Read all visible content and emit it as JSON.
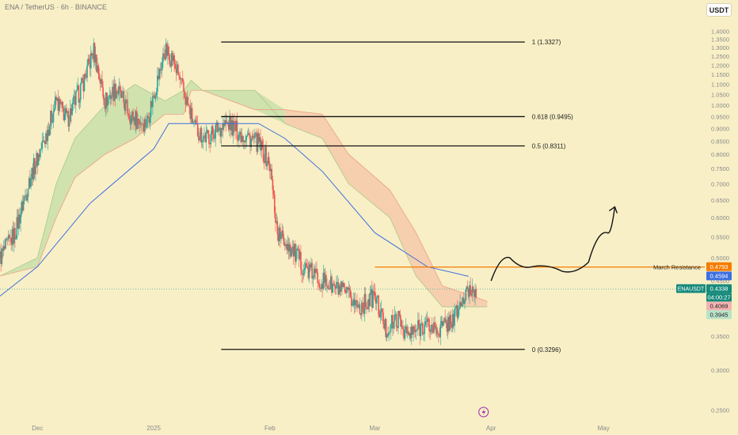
{
  "header": {
    "title": "ENA / TetherUS · 6h · BINANCE",
    "currency_button": "USDT"
  },
  "colors": {
    "background": "#f8efc6",
    "axis_text": "#8a8a8a",
    "bull_candle": "#26a69a",
    "bear_candle": "#ef5350",
    "moving_average": "#3d6fe0",
    "resistance": "#f57c00",
    "cloud_bull": "#c9dfa9",
    "cloud_bear": "#f6c9a9",
    "fib_line": "#111111"
  },
  "chart_data": {
    "type": "candlestick",
    "y_axis": {
      "scale": "log",
      "range": [
        0.24,
        1.48
      ],
      "ticks": [
        "1.4000",
        "1.3500",
        "1.3000",
        "1.2500",
        "1.2000",
        "1.1500",
        "1.1000",
        "1.0500",
        "1.0000",
        "0.9500",
        "0.9000",
        "0.8500",
        "0.8000",
        "0.7500",
        "0.7000",
        "0.6500",
        "0.6000",
        "0.5500",
        "0.5000",
        "0.4500",
        "0.4000",
        "0.3500",
        "0.3000",
        "0.2500"
      ],
      "side": "right"
    },
    "x_axis": {
      "range": [
        "2024-11-21",
        "2025-05-28"
      ],
      "ticks": [
        {
          "label": "Dec",
          "date": "2024-12-01"
        },
        {
          "label": "2025",
          "date": "2025-01-01"
        },
        {
          "label": "Feb",
          "date": "2025-02-01"
        },
        {
          "label": "Mar",
          "date": "2025-03-01"
        },
        {
          "label": "Apr",
          "date": "2025-04-01"
        },
        {
          "label": "May",
          "date": "2025-05-01"
        }
      ]
    },
    "price_path": [
      {
        "date": "2024-11-21",
        "price": 0.5
      },
      {
        "date": "2024-11-25",
        "price": 0.56
      },
      {
        "date": "2024-11-29",
        "price": 0.72
      },
      {
        "date": "2024-12-03",
        "price": 0.86
      },
      {
        "date": "2024-12-06",
        "price": 1.02
      },
      {
        "date": "2024-12-09",
        "price": 0.94
      },
      {
        "date": "2024-12-13",
        "price": 1.1
      },
      {
        "date": "2024-12-16",
        "price": 1.28
      },
      {
        "date": "2024-12-19",
        "price": 1.02
      },
      {
        "date": "2024-12-22",
        "price": 1.08
      },
      {
        "date": "2024-12-26",
        "price": 0.95
      },
      {
        "date": "2024-12-30",
        "price": 0.92
      },
      {
        "date": "2025-01-02",
        "price": 1.12
      },
      {
        "date": "2025-01-04",
        "price": 1.28
      },
      {
        "date": "2025-01-06",
        "price": 1.24
      },
      {
        "date": "2025-01-09",
        "price": 1.06
      },
      {
        "date": "2025-01-12",
        "price": 0.9
      },
      {
        "date": "2025-01-15",
        "price": 0.86
      },
      {
        "date": "2025-01-18",
        "price": 0.9
      },
      {
        "date": "2025-01-21",
        "price": 0.92
      },
      {
        "date": "2025-01-24",
        "price": 0.88
      },
      {
        "date": "2025-01-27",
        "price": 0.86
      },
      {
        "date": "2025-01-29",
        "price": 0.84
      },
      {
        "date": "2025-02-01",
        "price": 0.76
      },
      {
        "date": "2025-02-03",
        "price": 0.56
      },
      {
        "date": "2025-02-06",
        "price": 0.53
      },
      {
        "date": "2025-02-10",
        "price": 0.48
      },
      {
        "date": "2025-02-15",
        "price": 0.45
      },
      {
        "date": "2025-02-20",
        "price": 0.43
      },
      {
        "date": "2025-02-25",
        "price": 0.4
      },
      {
        "date": "2025-03-01",
        "price": 0.42
      },
      {
        "date": "2025-03-04",
        "price": 0.36
      },
      {
        "date": "2025-03-07",
        "price": 0.38
      },
      {
        "date": "2025-03-10",
        "price": 0.35
      },
      {
        "date": "2025-03-14",
        "price": 0.37
      },
      {
        "date": "2025-03-18",
        "price": 0.36
      },
      {
        "date": "2025-03-22",
        "price": 0.38
      },
      {
        "date": "2025-03-26",
        "price": 0.43
      },
      {
        "date": "2025-03-28",
        "price": 0.4338
      }
    ],
    "moving_average": [
      {
        "date": "2024-11-21",
        "price": 0.42
      },
      {
        "date": "2024-12-01",
        "price": 0.48
      },
      {
        "date": "2024-12-15",
        "price": 0.64
      },
      {
        "date": "2025-01-01",
        "price": 0.82
      },
      {
        "date": "2025-01-05",
        "price": 0.92
      },
      {
        "date": "2025-01-15",
        "price": 0.92
      },
      {
        "date": "2025-01-29",
        "price": 0.92
      },
      {
        "date": "2025-02-05",
        "price": 0.86
      },
      {
        "date": "2025-02-15",
        "price": 0.74
      },
      {
        "date": "2025-03-01",
        "price": 0.56
      },
      {
        "date": "2025-03-15",
        "price": 0.48
      },
      {
        "date": "2025-03-26",
        "price": 0.4594
      }
    ],
    "cloud": [
      {
        "date": "2024-11-21",
        "a": 0.46,
        "b": 0.46
      },
      {
        "date": "2024-12-01",
        "a": 0.5,
        "b": 0.48
      },
      {
        "date": "2024-12-06",
        "a": 0.7,
        "b": 0.6
      },
      {
        "date": "2024-12-11",
        "a": 0.86,
        "b": 0.72
      },
      {
        "date": "2024-12-19",
        "a": 1.0,
        "b": 0.8
      },
      {
        "date": "2024-12-27",
        "a": 1.1,
        "b": 0.86
      },
      {
        "date": "2025-01-04",
        "a": 1.02,
        "b": 0.96
      },
      {
        "date": "2025-01-09",
        "a": 1.07,
        "b": 0.96
      },
      {
        "date": "2025-01-11",
        "a": 1.12,
        "b": 1.07
      },
      {
        "date": "2025-01-14",
        "a": 1.07,
        "b": 1.07
      },
      {
        "date": "2025-01-28",
        "a": 1.07,
        "b": 0.98
      },
      {
        "date": "2025-02-05",
        "a": 0.92,
        "b": 0.98
      },
      {
        "date": "2025-02-15",
        "a": 0.86,
        "b": 0.96
      },
      {
        "date": "2025-02-22",
        "a": 0.7,
        "b": 0.8
      },
      {
        "date": "2025-03-05",
        "a": 0.6,
        "b": 0.68
      },
      {
        "date": "2025-03-12",
        "a": 0.46,
        "b": 0.56
      },
      {
        "date": "2025-03-19",
        "a": 0.4,
        "b": 0.44
      },
      {
        "date": "2025-03-31",
        "a": 0.4,
        "b": 0.41
      }
    ],
    "fibonacci": {
      "start": "2025-01-19",
      "end": "2025-04-10",
      "levels": [
        {
          "label": "1 (1.3327)",
          "value": 1.3327
        },
        {
          "label": "0.618 (0.9495)",
          "value": 0.9495
        },
        {
          "label": "0.5 (0.8311)",
          "value": 0.8311
        },
        {
          "label": "0 (0.3296)",
          "value": 0.3296
        }
      ]
    },
    "resistance": {
      "label": "March Resistance",
      "value": 0.4793,
      "start": "2025-03-01"
    },
    "current_price_line": 0.4338,
    "price_labels": [
      {
        "text": "0.4793",
        "value": 0.4793,
        "color": "#f57c00",
        "text_color": "#ffffff"
      },
      {
        "text": "0.4594",
        "value": 0.4594,
        "color": "#3d6fe0",
        "text_color": "#ffffff"
      },
      {
        "text": "0.4338",
        "value": 0.4338,
        "color": "#168a7b",
        "text_color": "#ffffff"
      },
      {
        "text": "04:00:27",
        "value": 0.4338,
        "color": "#168a7b",
        "text_color": "#ffffff",
        "timer": true
      },
      {
        "text": "0.4069",
        "value": 0.4069,
        "color": "#f3b3b1",
        "text_color": "#222222"
      },
      {
        "text": "0.3945",
        "value": 0.3945,
        "color": "#b9e3c9",
        "text_color": "#222222"
      }
    ],
    "symbol_badge": {
      "text": "ENAUSDT",
      "value": 0.4338,
      "color": "#168a7b"
    },
    "projection_arrow": [
      {
        "date": "2025-04-01",
        "price": 0.45
      },
      {
        "date": "2025-04-06",
        "price": 0.5
      },
      {
        "date": "2025-04-12",
        "price": 0.48
      },
      {
        "date": "2025-04-20",
        "price": 0.47
      },
      {
        "date": "2025-04-27",
        "price": 0.49
      },
      {
        "date": "2025-05-02",
        "price": 0.56
      },
      {
        "date": "2025-05-04",
        "price": 0.63
      }
    ],
    "lightning_marker": {
      "date": "2025-03-30"
    }
  }
}
